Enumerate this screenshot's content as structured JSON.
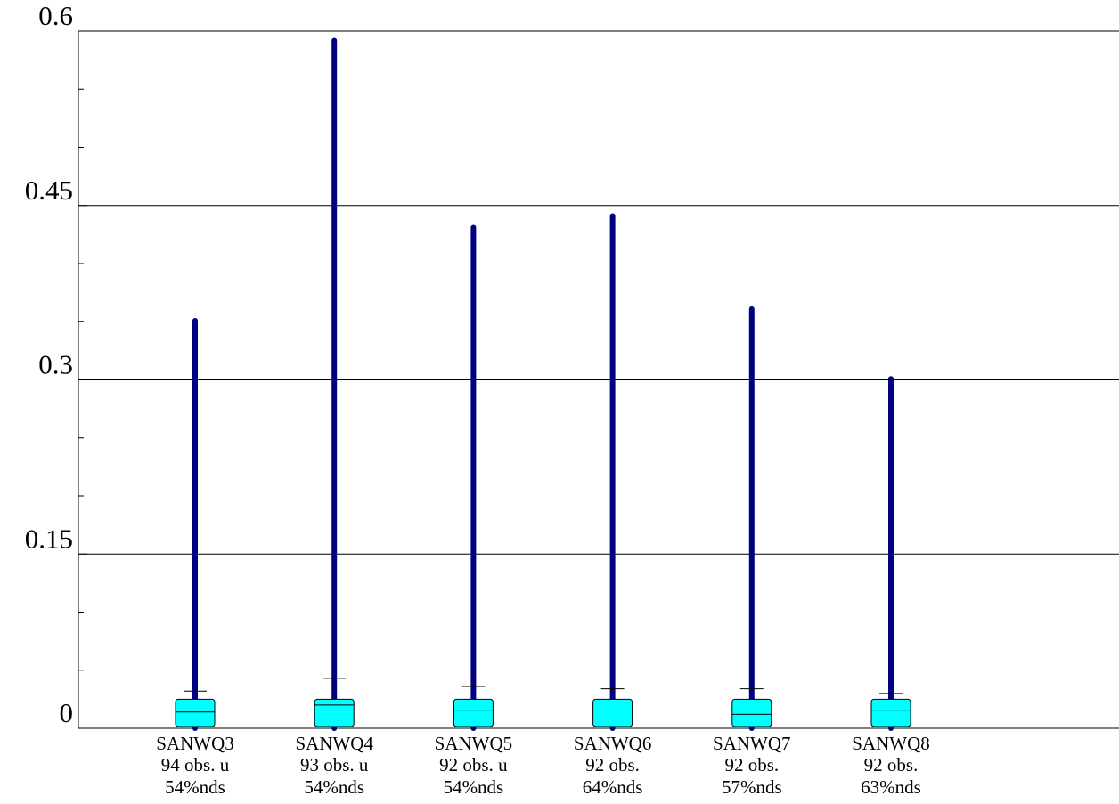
{
  "chart_data": {
    "type": "box",
    "categories": [
      "SANWQ3",
      "SANWQ4",
      "SANWQ5",
      "SANWQ6",
      "SANWQ7",
      "SANWQ8"
    ],
    "obs_labels": [
      "94 obs. u",
      "93 obs. u",
      "92 obs. u",
      "92 obs.",
      "92 obs.",
      "92 obs."
    ],
    "nds_labels": [
      "54%nds",
      "54%nds",
      "54%nds",
      "64%nds",
      "57%nds",
      "63%nds"
    ],
    "min": [
      0,
      0,
      0,
      0,
      0,
      0
    ],
    "q1": [
      0.0015,
      0.0015,
      0.0015,
      0.0015,
      0.0015,
      0.0015
    ],
    "median": [
      0.014,
      0.02,
      0.015,
      0.008,
      0.012,
      0.015
    ],
    "q3": [
      0.025,
      0.025,
      0.025,
      0.025,
      0.025,
      0.025
    ],
    "whisker_high": [
      0.032,
      0.043,
      0.036,
      0.034,
      0.034,
      0.03
    ],
    "max": [
      0.351,
      0.592,
      0.431,
      0.441,
      0.361,
      0.301
    ],
    "box_color": "#00ffff",
    "range_color": "#000080",
    "ylim": [
      0,
      0.6
    ],
    "yticks": [
      0,
      0.15,
      0.3,
      0.45,
      0.6
    ],
    "yminorticks": [
      0.05,
      0.1,
      0.2,
      0.25,
      0.35,
      0.4,
      0.5,
      0.55
    ],
    "grid": true
  }
}
